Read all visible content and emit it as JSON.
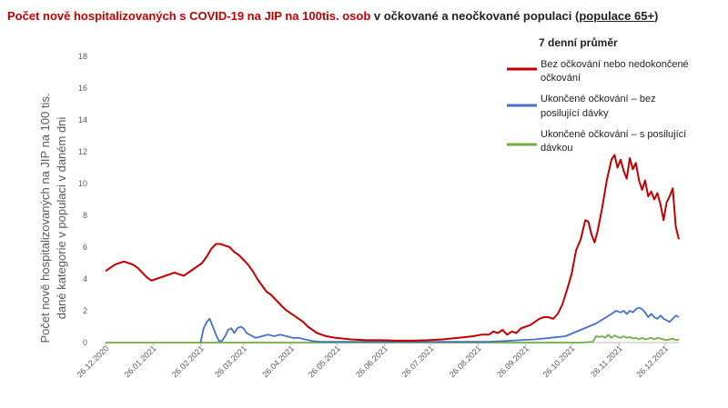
{
  "title": {
    "part1": "Počet nově hospitalizovaných s COVID-19 na JIP na 100tis. osob",
    "part2": " v očkované a neočkované populaci (",
    "part3": "populace 65+",
    "part4": ")",
    "color_red": "#c00000"
  },
  "chart_data": {
    "type": "line",
    "ylabel_line1": "Počet nově hospitalizovaných na JIP na 100 tis.",
    "ylabel_line2": "dané kategorie v populaci v daném dni",
    "ylim": [
      0,
      18
    ],
    "yticks": [
      0,
      2,
      4,
      6,
      8,
      10,
      12,
      14,
      16,
      18
    ],
    "xticks": [
      "26.12.2020",
      "26.01.2021",
      "26.02.2021",
      "26.03.2021",
      "26.04.2021",
      "26.05.2021",
      "26.06.2021",
      "26.07.2021",
      "26.08.2021",
      "26.09.2021",
      "26.10.2021",
      "26.11.2021",
      "26.12.2021"
    ],
    "x_days": [
      0,
      31,
      62,
      90,
      121,
      151,
      182,
      212,
      243,
      274,
      304,
      335,
      365
    ],
    "xlim_days": [
      0,
      374
    ],
    "legend_title": "7 denní průměr",
    "legend_position": "top-right",
    "series": [
      {
        "name": "Bez očkování nebo nedokončené očkování",
        "label_line1": "Bez očkování nebo nedokončené",
        "label_line2": "očkování",
        "color": "#c00000",
        "points": [
          [
            0,
            4.5
          ],
          [
            3,
            4.7
          ],
          [
            6,
            4.9
          ],
          [
            9,
            5.0
          ],
          [
            12,
            5.1
          ],
          [
            15,
            5.0
          ],
          [
            18,
            4.9
          ],
          [
            21,
            4.7
          ],
          [
            24,
            4.4
          ],
          [
            27,
            4.1
          ],
          [
            30,
            3.9
          ],
          [
            33,
            4.0
          ],
          [
            36,
            4.1
          ],
          [
            39,
            4.2
          ],
          [
            42,
            4.3
          ],
          [
            45,
            4.4
          ],
          [
            48,
            4.3
          ],
          [
            51,
            4.2
          ],
          [
            54,
            4.4
          ],
          [
            57,
            4.6
          ],
          [
            60,
            4.8
          ],
          [
            63,
            5.0
          ],
          [
            66,
            5.4
          ],
          [
            69,
            5.9
          ],
          [
            72,
            6.2
          ],
          [
            75,
            6.2
          ],
          [
            78,
            6.1
          ],
          [
            81,
            6.0
          ],
          [
            84,
            5.7
          ],
          [
            87,
            5.5
          ],
          [
            90,
            5.2
          ],
          [
            93,
            4.9
          ],
          [
            96,
            4.5
          ],
          [
            99,
            4.0
          ],
          [
            102,
            3.6
          ],
          [
            105,
            3.2
          ],
          [
            108,
            3.0
          ],
          [
            111,
            2.7
          ],
          [
            114,
            2.4
          ],
          [
            117,
            2.1
          ],
          [
            120,
            1.9
          ],
          [
            123,
            1.7
          ],
          [
            126,
            1.5
          ],
          [
            129,
            1.3
          ],
          [
            132,
            1.0
          ],
          [
            135,
            0.8
          ],
          [
            138,
            0.6
          ],
          [
            141,
            0.5
          ],
          [
            144,
            0.4
          ],
          [
            147,
            0.35
          ],
          [
            150,
            0.3
          ],
          [
            155,
            0.25
          ],
          [
            160,
            0.2
          ],
          [
            170,
            0.15
          ],
          [
            180,
            0.15
          ],
          [
            190,
            0.12
          ],
          [
            200,
            0.12
          ],
          [
            210,
            0.15
          ],
          [
            220,
            0.2
          ],
          [
            230,
            0.3
          ],
          [
            240,
            0.4
          ],
          [
            245,
            0.5
          ],
          [
            250,
            0.5
          ],
          [
            253,
            0.7
          ],
          [
            256,
            0.6
          ],
          [
            259,
            0.8
          ],
          [
            262,
            0.5
          ],
          [
            265,
            0.7
          ],
          [
            268,
            0.6
          ],
          [
            271,
            0.9
          ],
          [
            274,
            1.0
          ],
          [
            277,
            1.1
          ],
          [
            280,
            1.3
          ],
          [
            283,
            1.5
          ],
          [
            286,
            1.6
          ],
          [
            289,
            1.6
          ],
          [
            292,
            1.5
          ],
          [
            295,
            1.8
          ],
          [
            298,
            2.4
          ],
          [
            301,
            3.3
          ],
          [
            304,
            4.3
          ],
          [
            307,
            5.8
          ],
          [
            310,
            6.5
          ],
          [
            313,
            7.7
          ],
          [
            315,
            7.6
          ],
          [
            317,
            6.8
          ],
          [
            319,
            6.3
          ],
          [
            321,
            7.0
          ],
          [
            324,
            8.5
          ],
          [
            327,
            10.2
          ],
          [
            330,
            11.5
          ],
          [
            332,
            11.8
          ],
          [
            334,
            11.0
          ],
          [
            336,
            11.5
          ],
          [
            338,
            10.8
          ],
          [
            340,
            10.3
          ],
          [
            342,
            11.6
          ],
          [
            344,
            10.9
          ],
          [
            346,
            11.3
          ],
          [
            348,
            10.2
          ],
          [
            350,
            9.6
          ],
          [
            352,
            10.2
          ],
          [
            354,
            9.2
          ],
          [
            356,
            9.5
          ],
          [
            358,
            9.0
          ],
          [
            360,
            9.4
          ],
          [
            362,
            8.7
          ],
          [
            364,
            7.7
          ],
          [
            366,
            8.8
          ],
          [
            368,
            9.2
          ],
          [
            370,
            9.7
          ],
          [
            372,
            7.3
          ],
          [
            374,
            6.5
          ]
        ]
      },
      {
        "name": "Ukončené očkování – bez posilující dávky",
        "label_line1": "Ukončené očkování – bez",
        "label_line2": "posilující dávky",
        "color": "#4472c4",
        "points": [
          [
            62,
            0
          ],
          [
            64,
            0.9
          ],
          [
            66,
            1.3
          ],
          [
            68,
            1.5
          ],
          [
            70,
            1.0
          ],
          [
            72,
            0.5
          ],
          [
            74,
            0.1
          ],
          [
            76,
            0.1
          ],
          [
            78,
            0.4
          ],
          [
            80,
            0.8
          ],
          [
            82,
            0.9
          ],
          [
            84,
            0.6
          ],
          [
            86,
            0.9
          ],
          [
            88,
            1.0
          ],
          [
            90,
            0.9
          ],
          [
            92,
            0.6
          ],
          [
            94,
            0.5
          ],
          [
            98,
            0.3
          ],
          [
            102,
            0.4
          ],
          [
            106,
            0.5
          ],
          [
            110,
            0.4
          ],
          [
            114,
            0.5
          ],
          [
            118,
            0.4
          ],
          [
            122,
            0.3
          ],
          [
            126,
            0.3
          ],
          [
            130,
            0.2
          ],
          [
            135,
            0.1
          ],
          [
            140,
            0.05
          ],
          [
            150,
            0.05
          ],
          [
            180,
            0.05
          ],
          [
            220,
            0.05
          ],
          [
            250,
            0.05
          ],
          [
            260,
            0.1
          ],
          [
            270,
            0.15
          ],
          [
            280,
            0.2
          ],
          [
            290,
            0.3
          ],
          [
            300,
            0.4
          ],
          [
            310,
            0.8
          ],
          [
            320,
            1.2
          ],
          [
            330,
            1.8
          ],
          [
            333,
            2.0
          ],
          [
            336,
            1.9
          ],
          [
            338,
            2.0
          ],
          [
            340,
            1.8
          ],
          [
            342,
            2.0
          ],
          [
            344,
            1.9
          ],
          [
            346,
            2.1
          ],
          [
            348,
            2.2
          ],
          [
            350,
            2.1
          ],
          [
            352,
            1.9
          ],
          [
            354,
            1.6
          ],
          [
            356,
            1.8
          ],
          [
            358,
            1.6
          ],
          [
            360,
            1.5
          ],
          [
            362,
            1.7
          ],
          [
            364,
            1.5
          ],
          [
            366,
            1.4
          ],
          [
            368,
            1.3
          ],
          [
            370,
            1.5
          ],
          [
            372,
            1.7
          ],
          [
            374,
            1.6
          ]
        ]
      },
      {
        "name": "Ukončené očkování – s posilující dávkou",
        "label_line1": "Ukončené očkování – s posilující",
        "label_line2": "dávkou",
        "color": "#70ad47",
        "points": [
          [
            0,
            0
          ],
          [
            60,
            0
          ],
          [
            120,
            0
          ],
          [
            180,
            0
          ],
          [
            240,
            0
          ],
          [
            300,
            0
          ],
          [
            310,
            0
          ],
          [
            318,
            0.05
          ],
          [
            320,
            0.4
          ],
          [
            322,
            0.35
          ],
          [
            324,
            0.4
          ],
          [
            326,
            0.3
          ],
          [
            328,
            0.5
          ],
          [
            330,
            0.3
          ],
          [
            332,
            0.45
          ],
          [
            334,
            0.35
          ],
          [
            336,
            0.3
          ],
          [
            338,
            0.4
          ],
          [
            340,
            0.3
          ],
          [
            342,
            0.35
          ],
          [
            344,
            0.25
          ],
          [
            346,
            0.3
          ],
          [
            348,
            0.2
          ],
          [
            350,
            0.3
          ],
          [
            352,
            0.2
          ],
          [
            354,
            0.25
          ],
          [
            356,
            0.3
          ],
          [
            358,
            0.2
          ],
          [
            360,
            0.3
          ],
          [
            362,
            0.25
          ],
          [
            364,
            0.2
          ],
          [
            366,
            0.15
          ],
          [
            368,
            0.2
          ],
          [
            370,
            0.25
          ],
          [
            372,
            0.15
          ],
          [
            374,
            0.2
          ]
        ]
      }
    ]
  }
}
